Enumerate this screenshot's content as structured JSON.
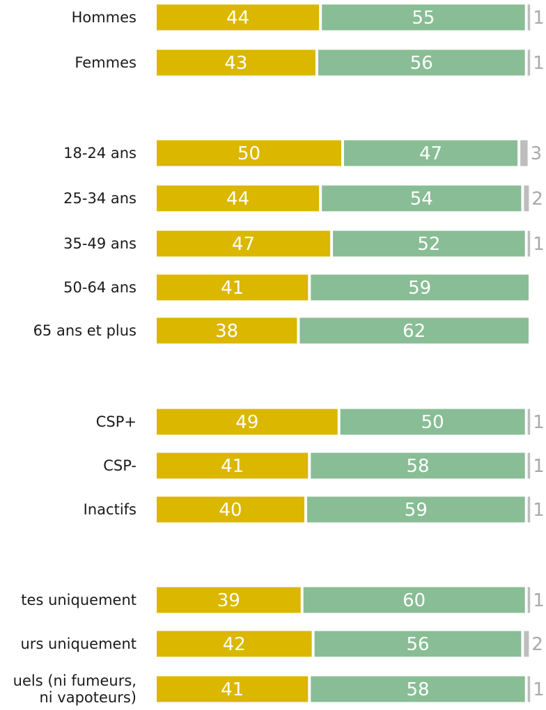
{
  "colors": {
    "series_a": "#dbb700",
    "series_b": "#89bd95",
    "series_c": "#bdbdbd"
  },
  "chart_data": {
    "type": "bar",
    "orientation": "horizontal",
    "stacked": true,
    "categories": [
      "Hommes",
      "Femmes",
      "18-24 ans",
      "25-34 ans",
      "35-49 ans",
      "50-64 ans",
      "65 ans et plus",
      "CSP+",
      "CSP-",
      "Inactifs",
      "tes uniquement",
      "urs uniquement",
      "uels (ni fumeurs,\nni vapoteurs)"
    ],
    "series": [
      {
        "values": [
          44,
          43,
          50,
          44,
          47,
          41,
          38,
          49,
          41,
          40,
          39,
          42,
          41
        ]
      },
      {
        "values": [
          55,
          56,
          47,
          54,
          52,
          59,
          62,
          50,
          58,
          59,
          60,
          56,
          58
        ]
      },
      {
        "values": [
          1,
          1,
          3,
          2,
          1,
          0,
          0,
          1,
          1,
          1,
          1,
          2,
          1
        ]
      }
    ],
    "xlim": [
      0,
      100
    ],
    "legend": "none",
    "grid": false
  }
}
